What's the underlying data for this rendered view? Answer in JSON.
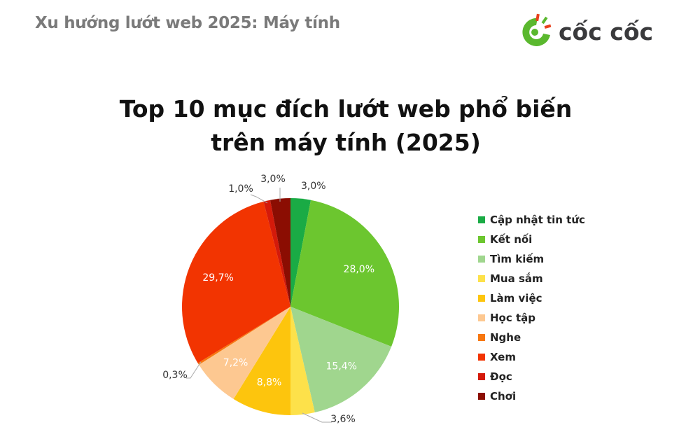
{
  "header": {
    "title": "Xu hướng lướt web 2025: Máy tính"
  },
  "logo": {
    "text": "cốc cốc",
    "colors": {
      "green": "#5ab82e",
      "red": "#e8401c",
      "text": "#3a3a3c"
    }
  },
  "chart_data": {
    "type": "pie",
    "title": "Top 10 mục đích lướt web phổ biến trên máy tính (2025)",
    "title_lines": [
      "Top 10 mục đích lướt web phổ biến",
      "trên máy tính (2025)"
    ],
    "categories": [
      "Cập nhật tin tức",
      "Kết nối",
      "Tìm kiếm",
      "Mua sắm",
      "Làm việc",
      "Học tập",
      "Nghe",
      "Xem",
      "Đọc",
      "Chơi"
    ],
    "values": [
      3.0,
      28.0,
      15.4,
      3.6,
      8.8,
      7.2,
      0.3,
      29.7,
      1.0,
      3.0
    ],
    "labels": [
      "3,0%",
      "28,0%",
      "15,4%",
      "3,6%",
      "8,8%",
      "7,2%",
      "0,3%",
      "29,7%",
      "1,0%",
      "3,0%"
    ],
    "colors": [
      "#1aab45",
      "#6cc62f",
      "#a0d68e",
      "#fde14a",
      "#fdc50d",
      "#fdc891",
      "#f7770f",
      "#f23401",
      "#d41a0a",
      "#8b0d02"
    ],
    "legend_position": "right",
    "start_angle": "12 o'clock, clockwise"
  }
}
